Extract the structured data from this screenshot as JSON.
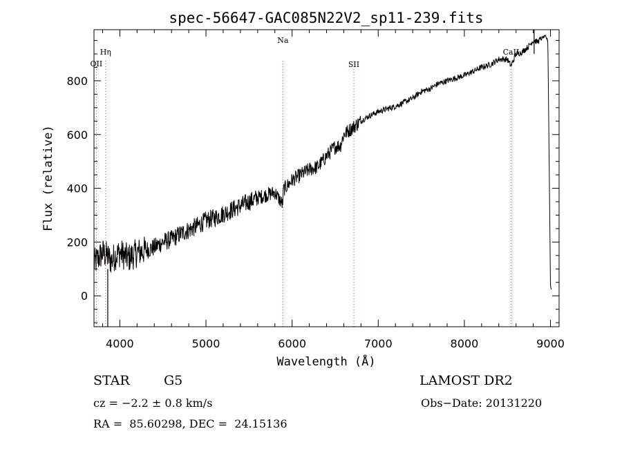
{
  "chart_data": {
    "type": "line",
    "title": "spec-56647-GAC085N22V2_sp11-239.fits",
    "xlabel": "Wavelength (Å)",
    "ylabel": "Flux (relative)",
    "xlim": [
      3700,
      9100
    ],
    "ylim": [
      -115,
      990
    ],
    "xticks": [
      4000,
      5000,
      6000,
      7000,
      8000,
      9000
    ],
    "yticks": [
      0,
      200,
      400,
      600,
      800
    ],
    "grid": false,
    "series": [
      {
        "values_description_free": true,
        "x": [
          3700,
          3750,
          3800,
          3850,
          3900,
          3950,
          4000,
          4100,
          4200,
          4300,
          4400,
          4500,
          4600,
          4700,
          4800,
          4900,
          5000,
          5100,
          5200,
          5300,
          5400,
          5500,
          5600,
          5700,
          5800,
          5890,
          5900,
          6000,
          6100,
          6200,
          6300,
          6400,
          6500,
          6563,
          6600,
          6700,
          6800,
          6900,
          7000,
          7100,
          7200,
          7300,
          7400,
          7500,
          7600,
          7700,
          7800,
          7900,
          8000,
          8100,
          8200,
          8300,
          8400,
          8498,
          8542,
          8600,
          8662,
          8700,
          8750,
          8800,
          8850,
          8900,
          8940,
          8970,
          9000,
          9010
        ],
        "y": [
          120,
          140,
          160,
          150,
          130,
          150,
          160,
          140,
          160,
          170,
          180,
          200,
          210,
          230,
          245,
          260,
          280,
          290,
          305,
          320,
          335,
          350,
          365,
          375,
          385,
          340,
          395,
          430,
          450,
          470,
          480,
          520,
          555,
          560,
          600,
          625,
          650,
          670,
          685,
          695,
          705,
          720,
          735,
          760,
          770,
          790,
          800,
          810,
          820,
          835,
          850,
          860,
          880,
          880,
          855,
          900,
          905,
          915,
          930,
          950,
          945,
          960,
          965,
          950,
          40,
          20
        ]
      }
    ],
    "lines": [
      {
        "label": "OII",
        "x": 3727
      },
      {
        "label": "Hη",
        "x": 3835
      },
      {
        "label": "Na",
        "x": 5893
      },
      {
        "label": "SII",
        "x": 6717
      },
      {
        "label": "CaII",
        "x": 8542
      }
    ]
  },
  "info": {
    "class": "STAR",
    "subclass": "G5",
    "survey": "LAMOST DR2",
    "cz": "cz = −2.2 ± 0.8 km/s",
    "obs_date": "Obs−Date: 20131220",
    "radec": "RA =  85.60298, DEC =  24.15136"
  }
}
